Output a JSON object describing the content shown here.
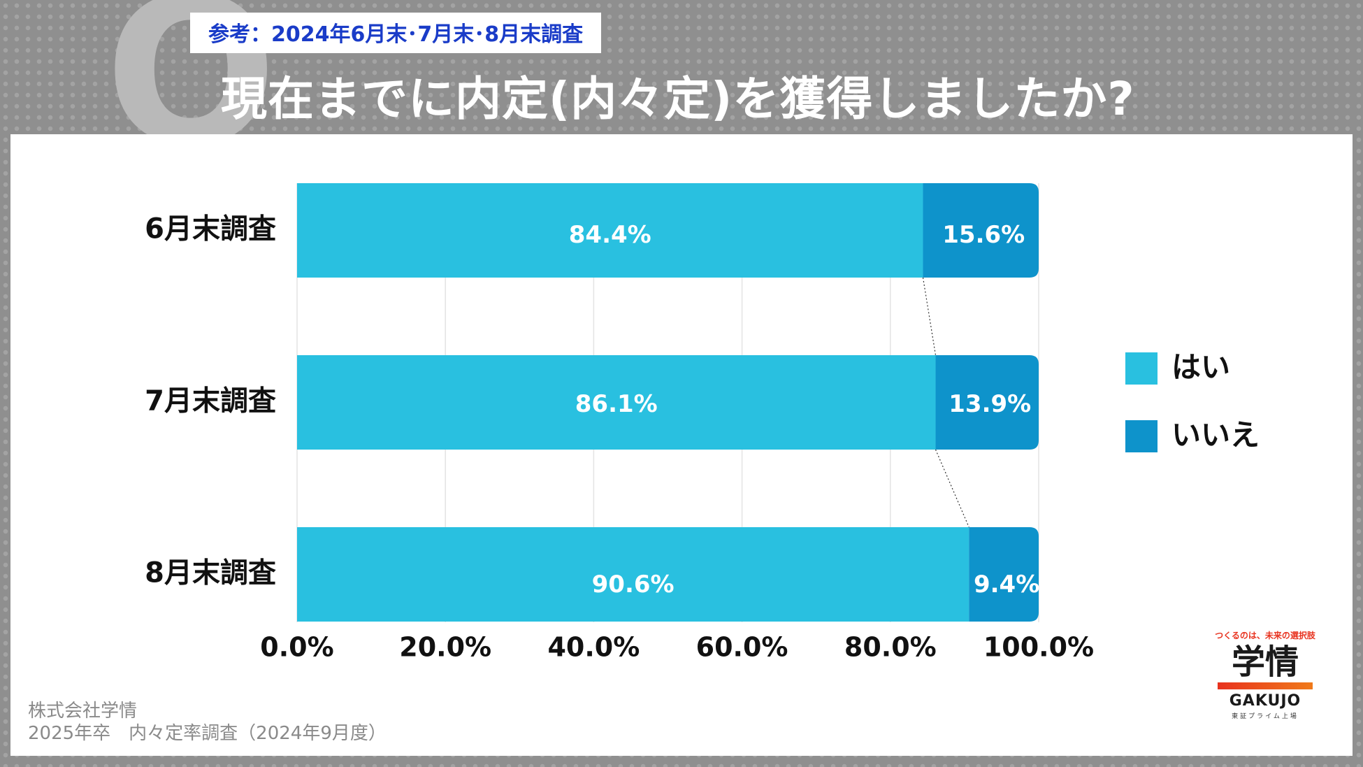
{
  "header": {
    "q_mark": "Q",
    "badge": "参考：2024年6月末･7月末･8月末調査",
    "title": "現在までに内定(内々定)を獲得しましたか?"
  },
  "chart_data": {
    "type": "bar",
    "orientation": "horizontal",
    "stacked": true,
    "categories": [
      "6月末調査",
      "7月末調査",
      "8月末調査"
    ],
    "series": [
      {
        "name": "はい",
        "values": [
          84.4,
          86.1,
          90.6
        ],
        "labels": [
          "84.4%",
          "86.1%",
          "90.6%"
        ],
        "color": "#29c0e0"
      },
      {
        "name": "いいえ",
        "values": [
          15.6,
          13.9,
          9.4
        ],
        "labels": [
          "15.6%",
          "13.9%",
          "9.4%"
        ],
        "color": "#0e93cb"
      }
    ],
    "xlim": [
      0,
      100
    ],
    "xticks": [
      "0.0%",
      "20.0%",
      "40.0%",
      "60.0%",
      "80.0%",
      "100.0%"
    ],
    "grid": true,
    "legend": "right"
  },
  "logo": {
    "tagline": "つくるのは、未来の選択肢",
    "main": "学情",
    "en": "GAKUJO",
    "sub": "東証プライム上場"
  },
  "source": {
    "company": "株式会社学情",
    "survey": "2025年卒　内々定率調査（2024年9月度）"
  }
}
